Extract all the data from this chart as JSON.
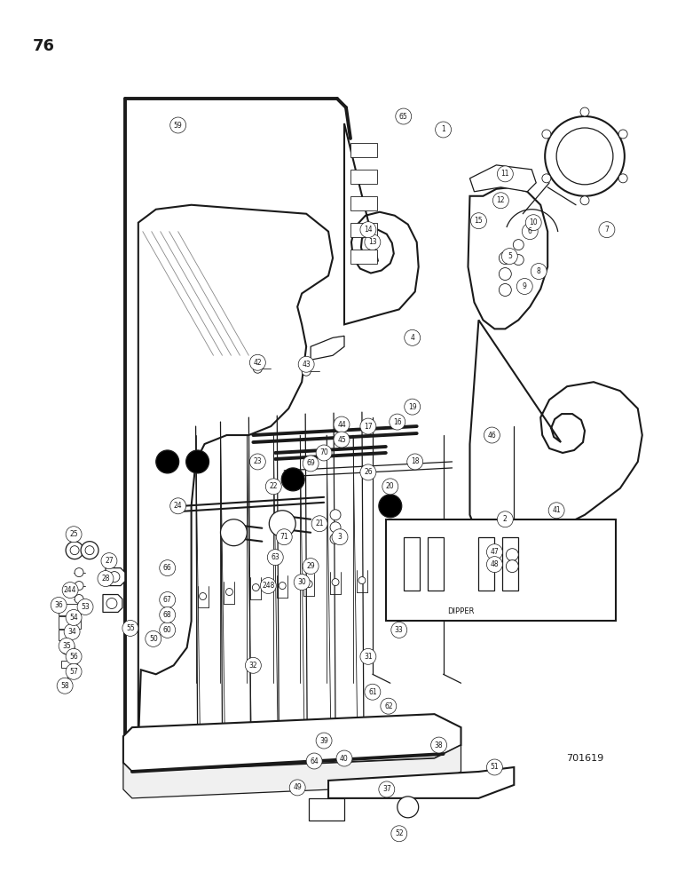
{
  "page_number": "76",
  "catalog_number": "701619",
  "background_color": "#ffffff",
  "ink_color": "#1a1a1a",
  "figsize": [
    7.72,
    10.0
  ],
  "dpi": 100
}
